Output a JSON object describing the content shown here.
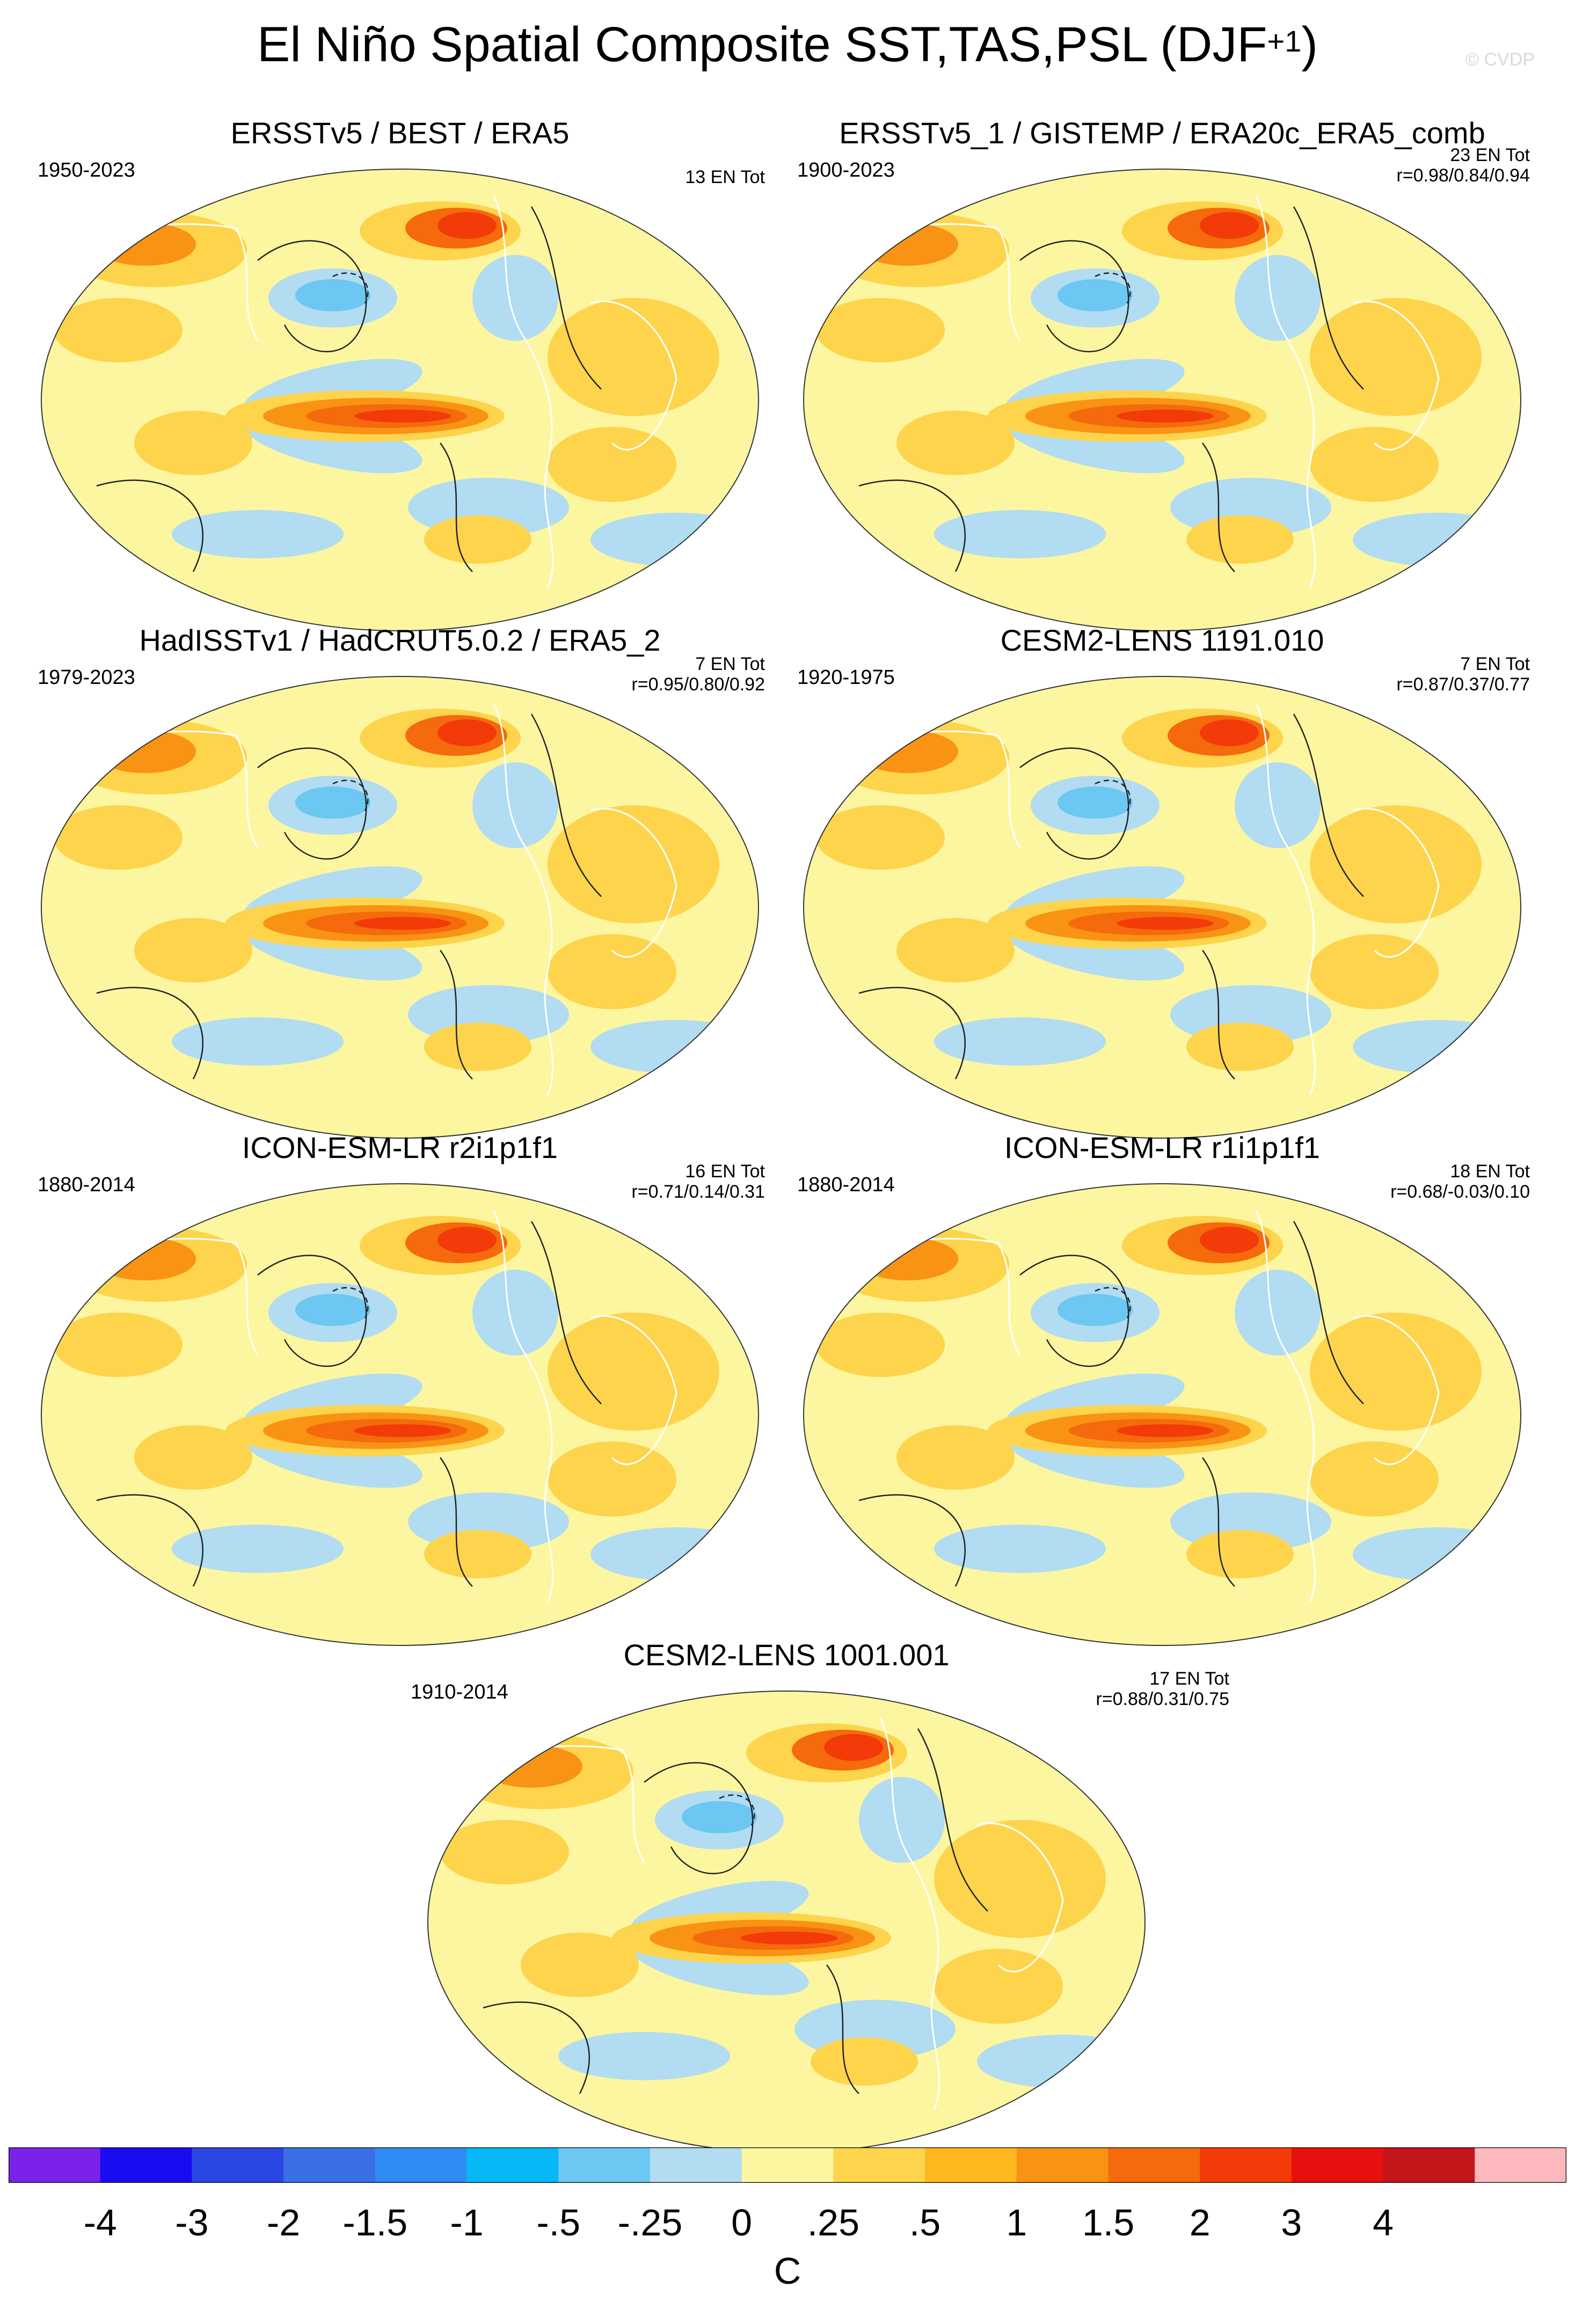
{
  "figure": {
    "title": "El Niño Spatial Composite SST,TAS,PSL (DJF",
    "title_superscript": "+1",
    "title_suffix": ")",
    "brand": "© CVDP"
  },
  "panels": [
    {
      "id": "p1",
      "title": "ERSSTv5 / BEST / ERA5",
      "period": "1950-2023",
      "count": "13 EN Tot",
      "corr": ""
    },
    {
      "id": "p2",
      "title": "ERSSTv5_1 / GISTEMP / ERA20c_ERA5_comb",
      "period": "1900-2023",
      "count": "23 EN Tot",
      "corr": "r=0.98/0.84/0.94"
    },
    {
      "id": "p3",
      "title": "HadISSTv1 / HadCRUT5.0.2 / ERA5_2",
      "period": "1979-2023",
      "count": "7 EN Tot",
      "corr": "r=0.95/0.80/0.92"
    },
    {
      "id": "p4",
      "title": "CESM2-LENS 1191.010",
      "period": "1920-1975",
      "count": "7 EN Tot",
      "corr": "r=0.87/0.37/0.77"
    },
    {
      "id": "p5",
      "title": "ICON-ESM-LR r2i1p1f1",
      "period": "1880-2014",
      "count": "16 EN Tot",
      "corr": "r=0.71/0.14/0.31"
    },
    {
      "id": "p6",
      "title": "ICON-ESM-LR r1i1p1f1",
      "period": "1880-2014",
      "count": "18 EN Tot",
      "corr": "r=0.68/-0.03/0.10"
    },
    {
      "id": "p7",
      "title": "CESM2-LENS 1001.001",
      "period": "1910-2014",
      "count": "17 EN Tot",
      "corr": "r=0.88/0.31/0.75"
    }
  ],
  "colorbar": {
    "unit": "C",
    "colors": [
      "#7b22e8",
      "#1a0cf0",
      "#2a46e3",
      "#3a6fe6",
      "#2f8cf2",
      "#07b8f7",
      "#6cc7f2",
      "#b1dcf2",
      "#fdf6a0",
      "#fdd44c",
      "#fdb81e",
      "#f99314",
      "#f56a0c",
      "#f23b08",
      "#e80f0f",
      "#c4151b",
      "#fdb8bd"
    ],
    "ticks": [
      "-4",
      "-3",
      "-2",
      "-1.5",
      "-1",
      "-.5",
      "-.25",
      "0",
      ".25",
      ".5",
      "1",
      "1.5",
      "2",
      "3",
      "4"
    ]
  }
}
